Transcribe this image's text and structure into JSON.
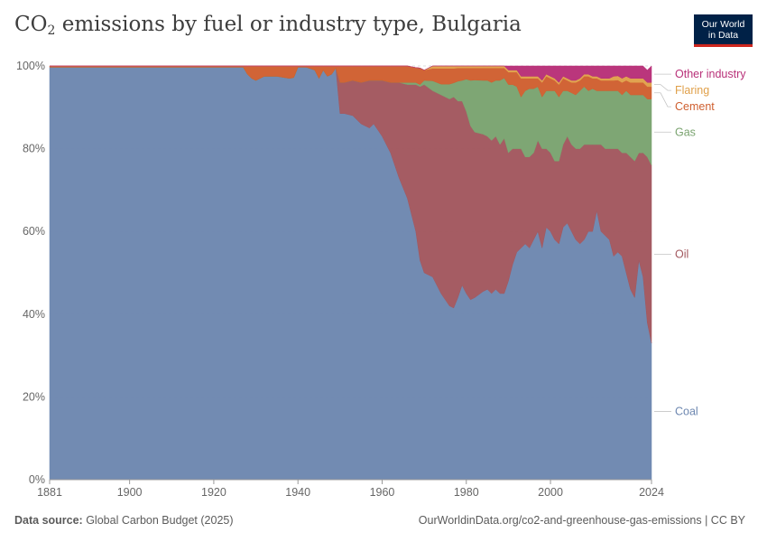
{
  "header": {
    "title_main": "CO",
    "title_sub": "2",
    "title_rest": " emissions by fuel or industry type, Bulgaria",
    "logo_line1": "Our World",
    "logo_line2": "in Data"
  },
  "footer": {
    "source_label": "Data source:",
    "source_value": " Global Carbon Budget (2025)",
    "url": "OurWorldinData.org/co2-and-greenhouse-gas-emissions | CC BY"
  },
  "colors": {
    "Coal": "#6d87b0",
    "Oil": "#a2575e",
    "Gas": "#7aa36f",
    "Cement": "#cf5f2f",
    "Flaring": "#e0a04a",
    "Other industry": "#b83078"
  },
  "chart_data": {
    "type": "area",
    "stacked": true,
    "title": "CO₂ emissions by fuel or industry type, Bulgaria",
    "x_ticks": [
      1881,
      1900,
      1920,
      1940,
      1960,
      1980,
      2000,
      2024
    ],
    "y_ticks": [
      "0%",
      "20%",
      "40%",
      "60%",
      "80%",
      "100%"
    ],
    "xlim": [
      1881,
      2024
    ],
    "ylim": [
      0,
      100
    ],
    "grid": "horizontal dashed",
    "legend": "right, labels aligned with series ends",
    "x": [
      1881,
      1927,
      1928,
      1929,
      1930,
      1932,
      1935,
      1938,
      1939,
      1940,
      1942,
      1944,
      1945,
      1946,
      1947,
      1948,
      1949,
      1950,
      1951,
      1953,
      1955,
      1957,
      1958,
      1960,
      1962,
      1964,
      1966,
      1968,
      1969,
      1970,
      1972,
      1974,
      1976,
      1977,
      1978,
      1979,
      1980,
      1981,
      1982,
      1984,
      1985,
      1986,
      1987,
      1988,
      1989,
      1990,
      1991,
      1992,
      1993,
      1994,
      1995,
      1996,
      1997,
      1998,
      1999,
      2000,
      2001,
      2002,
      2003,
      2004,
      2005,
      2006,
      2007,
      2008,
      2009,
      2010,
      2011,
      2012,
      2013,
      2014,
      2015,
      2016,
      2017,
      2018,
      2019,
      2020,
      2021,
      2022,
      2023,
      2024
    ],
    "series": [
      {
        "name": "Coal",
        "values": [
          99.7,
          99.7,
          98,
          97,
          96.5,
          97.5,
          97.5,
          97,
          97.2,
          99.7,
          99.7,
          99,
          97,
          99,
          97.5,
          98,
          99.5,
          88.5,
          88.5,
          88,
          86,
          85,
          86,
          83,
          79,
          73,
          68,
          60,
          53,
          50,
          49,
          45,
          42,
          41.5,
          44,
          47,
          45,
          43.5,
          44,
          45.5,
          46,
          45,
          46,
          45,
          45,
          48,
          52,
          55,
          56,
          57,
          56,
          58,
          60,
          56,
          61,
          60,
          58,
          57,
          61,
          62,
          60,
          58,
          57,
          58,
          60,
          60,
          65,
          60,
          59,
          58,
          54,
          55,
          54,
          50,
          46,
          44,
          53,
          49,
          38,
          33
        ]
      },
      {
        "name": "Oil",
        "values": [
          0,
          0,
          0,
          0,
          0,
          0,
          0,
          0,
          0,
          0,
          0,
          0,
          0,
          0,
          0,
          0,
          0,
          7.5,
          7.5,
          8.5,
          10,
          11.5,
          10.5,
          13.5,
          17,
          23,
          27.5,
          35.5,
          42,
          45.5,
          45,
          48,
          50,
          51,
          47.5,
          44.5,
          44,
          42,
          40,
          38,
          37,
          37,
          37,
          36,
          37.5,
          31,
          28,
          25,
          24,
          21,
          22,
          21,
          22,
          24,
          19,
          19,
          19,
          20,
          20,
          21,
          21,
          22,
          23,
          23,
          21,
          21,
          16,
          21,
          21,
          22,
          26,
          25,
          25,
          29,
          32,
          33,
          26,
          30,
          40,
          43
        ]
      },
      {
        "name": "Gas",
        "values": [
          0,
          0,
          0,
          0,
          0,
          0,
          0,
          0,
          0,
          0,
          0,
          0,
          0,
          0,
          0,
          0,
          0,
          0,
          0,
          0,
          0,
          0,
          0,
          0,
          0,
          0,
          0.5,
          0.5,
          0.5,
          1,
          2.4,
          2.6,
          3.6,
          3.4,
          4.8,
          5,
          7.8,
          11,
          12.6,
          13,
          13.5,
          14,
          13.5,
          15.5,
          14.6,
          16.5,
          15.5,
          15,
          12.5,
          16,
          16.5,
          15.5,
          13,
          12.5,
          14,
          15,
          17,
          15.5,
          13,
          11,
          12.5,
          13,
          14,
          14,
          13,
          13.5,
          13,
          13,
          14,
          14,
          14,
          14,
          14,
          15,
          15,
          16,
          14,
          14,
          14,
          16
        ]
      },
      {
        "name": "Cement",
        "values": [
          0.3,
          0.3,
          2,
          3,
          3.5,
          2.5,
          2.5,
          3,
          2.8,
          0.3,
          0.3,
          1,
          3,
          1,
          2.5,
          2,
          0.5,
          4,
          4,
          3.5,
          4,
          3.5,
          3.5,
          3.5,
          4,
          4,
          4,
          3.6,
          4,
          2.5,
          3,
          3.8,
          3.8,
          3.5,
          3.2,
          3,
          2.7,
          3,
          2.9,
          3,
          3,
          3.5,
          3,
          3,
          2.4,
          3,
          3,
          3.5,
          4.5,
          3,
          2.5,
          2.5,
          2,
          3.5,
          3.5,
          3,
          2.5,
          3,
          3,
          2.5,
          2.5,
          3,
          2.5,
          2.5,
          3.5,
          2.5,
          3,
          2.5,
          2.5,
          2.5,
          2.5,
          2.6,
          3,
          2.5,
          3,
          3,
          3,
          3,
          3,
          3
        ]
      },
      {
        "name": "Flaring",
        "values": [
          0,
          0,
          0,
          0,
          0,
          0,
          0,
          0,
          0,
          0,
          0,
          0,
          0,
          0,
          0,
          0,
          0,
          0,
          0,
          0,
          0,
          0,
          0,
          0,
          0,
          0,
          0,
          0,
          0,
          0,
          0.6,
          0.6,
          0.6,
          0.6,
          0.5,
          0.5,
          0.5,
          0.5,
          0.5,
          0.5,
          0.5,
          0.5,
          0.5,
          0.5,
          0.5,
          0.5,
          0.5,
          0.5,
          0.5,
          0.5,
          0.5,
          0.5,
          0.5,
          0.5,
          0.5,
          0.5,
          0.5,
          0.5,
          0.5,
          0.5,
          0.5,
          0.5,
          0.5,
          0.5,
          0.5,
          0.5,
          0.5,
          0.5,
          0.5,
          0.5,
          1,
          1,
          1,
          1,
          1,
          1,
          1,
          1,
          1,
          1
        ]
      },
      {
        "name": "Other industry",
        "values": [
          0,
          0,
          0,
          0,
          0,
          0,
          0,
          0,
          0,
          0,
          0,
          0,
          0,
          0,
          0,
          0,
          0,
          0,
          0,
          0,
          0,
          0,
          0,
          0,
          0,
          0,
          0,
          0,
          0,
          0,
          0,
          0,
          0,
          0,
          0,
          0,
          0,
          0,
          0,
          0,
          0,
          0,
          0,
          0,
          0,
          1,
          1,
          1,
          2.5,
          2.5,
          2.5,
          2.5,
          2.5,
          3.5,
          2,
          2.5,
          3,
          4,
          2.5,
          3,
          3.5,
          3.5,
          3,
          2,
          2,
          2.5,
          2.5,
          3,
          3,
          3,
          2.5,
          2.4,
          3,
          2.5,
          3,
          3,
          3,
          3,
          3,
          4
        ]
      }
    ]
  }
}
